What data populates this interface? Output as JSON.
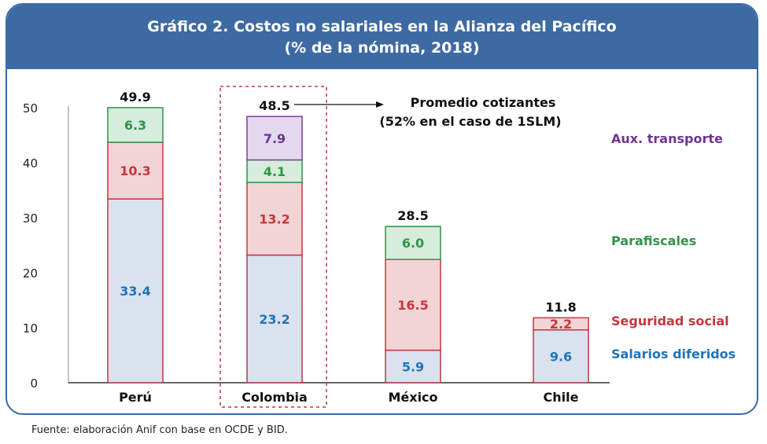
{
  "header": {
    "title_line1": "Gráfico 2. Costos no salariales en la Alianza del Pacífico",
    "title_line2": "(% de la nómina, 2018)"
  },
  "source": "Fuente: elaboración Anif con base en OCDE y BID.",
  "annotation": {
    "line1": "Promedio cotizantes",
    "line2": "(52% en el caso de 1SLM)"
  },
  "colors": {
    "salarios_fill": "#d9e2ef",
    "salarios_stroke": "#b33b46",
    "salarios_text": "#1f73b8",
    "seguridad_fill": "#f3d4d6",
    "seguridad_stroke": "#c5363d",
    "seguridad_text": "#c5363d",
    "parafiscales_fill": "#d6ecdc",
    "parafiscales_stroke": "#2e9448",
    "parafiscales_text": "#2e9448",
    "aux_fill": "#e3d8ee",
    "aux_stroke": "#7e3f9c",
    "aux_text": "#6f3393",
    "highlight_border": "#c5363d",
    "header_bg": "#3e6aa3"
  },
  "chart_data": {
    "type": "bar",
    "stacked": true,
    "categories": [
      "Perú",
      "Colombia",
      "México",
      "Chile"
    ],
    "series": [
      {
        "name": "Salarios diferidos",
        "values": [
          33.4,
          23.2,
          5.9,
          9.6
        ],
        "labels": [
          "33.4",
          "23.2",
          "5.9",
          "9.6"
        ]
      },
      {
        "name": "Seguridad social",
        "values": [
          10.3,
          13.2,
          16.5,
          2.2
        ],
        "labels": [
          "10.3",
          "13.2",
          "16.5",
          "2.2"
        ]
      },
      {
        "name": "Parafiscales",
        "values": [
          6.3,
          4.1,
          6.0,
          0
        ],
        "labels": [
          "6.3",
          "4.1",
          "6.0",
          ""
        ]
      },
      {
        "name": "Aux. transporte",
        "values": [
          0,
          7.9,
          0,
          0
        ],
        "labels": [
          "",
          "7.9",
          "",
          ""
        ]
      }
    ],
    "totals": [
      "49.9",
      "48.5",
      "28.5",
      "11.8"
    ],
    "yticks": [
      "0",
      "10",
      "20",
      "30",
      "40",
      "50"
    ],
    "ylim": [
      0,
      50
    ],
    "highlighted_category": "Colombia",
    "legend_placement": "right",
    "grid": false
  }
}
